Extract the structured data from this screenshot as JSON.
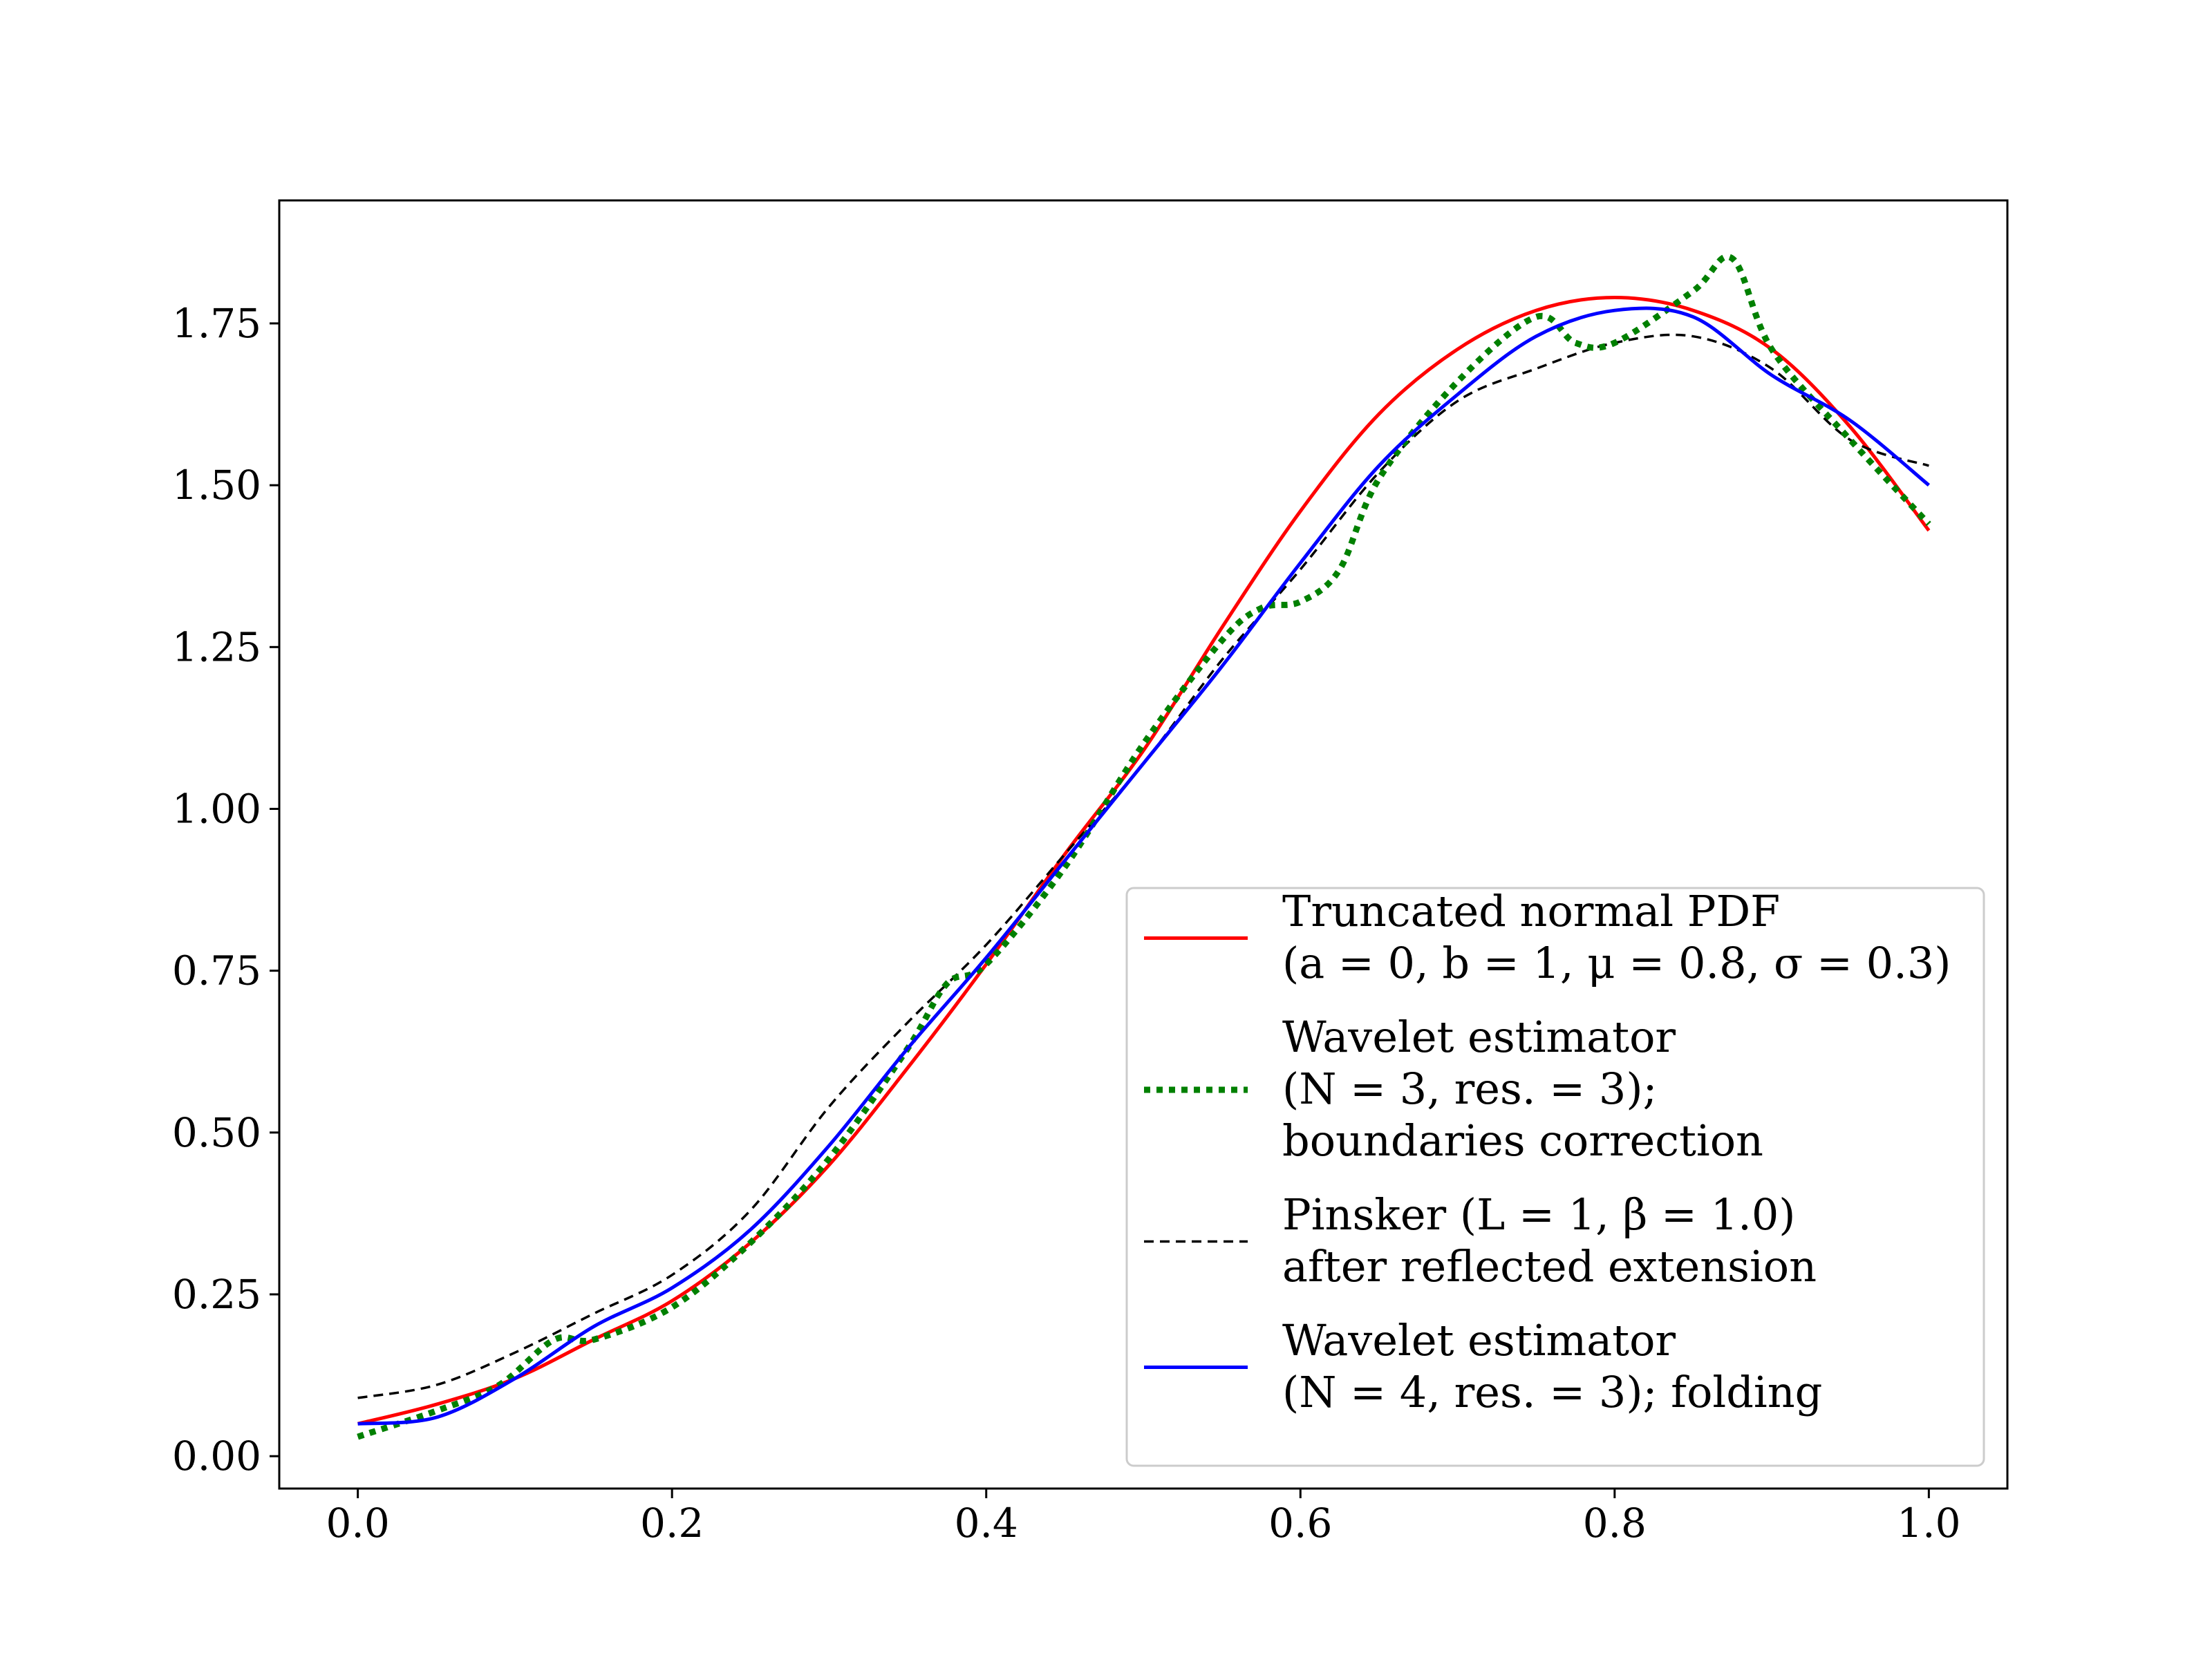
{
  "chart_data": {
    "type": "line",
    "xlim": [
      -0.05,
      1.05
    ],
    "ylim": [
      -0.05,
      1.94
    ],
    "xticks": [
      0.0,
      0.2,
      0.4,
      0.6,
      0.8,
      1.0
    ],
    "xtick_labels": [
      "0.0",
      "0.2",
      "0.4",
      "0.6",
      "0.8",
      "1.0"
    ],
    "yticks": [
      0.0,
      0.25,
      0.5,
      0.75,
      1.0,
      1.25,
      1.5,
      1.75
    ],
    "ytick_labels": [
      "0.00",
      "0.25",
      "0.50",
      "0.75",
      "1.00",
      "1.25",
      "1.50",
      "1.75"
    ],
    "grid": false,
    "legend_position": "lower-right",
    "series": [
      {
        "legend_lines": [
          "Truncated normal PDF",
          "(a = 0, b = 1, μ = 0.8, σ = 0.3)"
        ],
        "color": "#ff0000",
        "style": "solid",
        "x": [
          0.0,
          0.05,
          0.1,
          0.15,
          0.2,
          0.25,
          0.3,
          0.35,
          0.4,
          0.45,
          0.5,
          0.55,
          0.6,
          0.65,
          0.7,
          0.75,
          0.8,
          0.85,
          0.9,
          0.95,
          1.0
        ],
        "y": [
          0.05,
          0.08,
          0.12,
          0.18,
          0.24,
          0.33,
          0.45,
          0.6,
          0.76,
          0.93,
          1.09,
          1.28,
          1.46,
          1.61,
          1.71,
          1.77,
          1.79,
          1.77,
          1.71,
          1.59,
          1.43
        ]
      },
      {
        "legend_lines": [
          "Wavelet estimator",
          "(N = 3, res. = 3);",
          "boundaries correction"
        ],
        "color": "#008000",
        "style": "dotted",
        "x": [
          0.0,
          0.05,
          0.09,
          0.125,
          0.15,
          0.2,
          0.25,
          0.3,
          0.35,
          0.375,
          0.4,
          0.45,
          0.5,
          0.55,
          0.575,
          0.6,
          0.625,
          0.65,
          0.7,
          0.75,
          0.775,
          0.8,
          0.85,
          0.875,
          0.9,
          0.95,
          1.0
        ],
        "y": [
          0.03,
          0.07,
          0.11,
          0.18,
          0.18,
          0.23,
          0.33,
          0.46,
          0.63,
          0.73,
          0.76,
          0.91,
          1.1,
          1.26,
          1.31,
          1.32,
          1.37,
          1.51,
          1.66,
          1.76,
          1.72,
          1.72,
          1.8,
          1.85,
          1.71,
          1.57,
          1.44
        ]
      },
      {
        "legend_lines": [
          "Pinsker (L = 1, β = 1.0)",
          "after reflected extension"
        ],
        "color": "#000000",
        "style": "dashed",
        "x": [
          0.0,
          0.05,
          0.1,
          0.15,
          0.2,
          0.25,
          0.3,
          0.35,
          0.4,
          0.45,
          0.5,
          0.55,
          0.6,
          0.65,
          0.7,
          0.75,
          0.8,
          0.85,
          0.9,
          0.95,
          1.0
        ],
        "y": [
          0.09,
          0.11,
          0.16,
          0.22,
          0.28,
          0.38,
          0.54,
          0.67,
          0.79,
          0.93,
          1.07,
          1.23,
          1.37,
          1.52,
          1.63,
          1.68,
          1.72,
          1.73,
          1.68,
          1.57,
          1.53
        ]
      },
      {
        "legend_lines": [
          "Wavelet estimator",
          "(N = 4, res. = 3); folding"
        ],
        "color": "#0000ff",
        "style": "solid",
        "x": [
          0.0,
          0.05,
          0.1,
          0.15,
          0.2,
          0.25,
          0.3,
          0.35,
          0.4,
          0.45,
          0.5,
          0.55,
          0.6,
          0.65,
          0.7,
          0.75,
          0.8,
          0.85,
          0.9,
          0.95,
          1.0
        ],
        "y": [
          0.05,
          0.06,
          0.12,
          0.2,
          0.26,
          0.35,
          0.48,
          0.63,
          0.77,
          0.92,
          1.07,
          1.22,
          1.38,
          1.53,
          1.64,
          1.73,
          1.77,
          1.76,
          1.67,
          1.6,
          1.5
        ]
      }
    ]
  }
}
